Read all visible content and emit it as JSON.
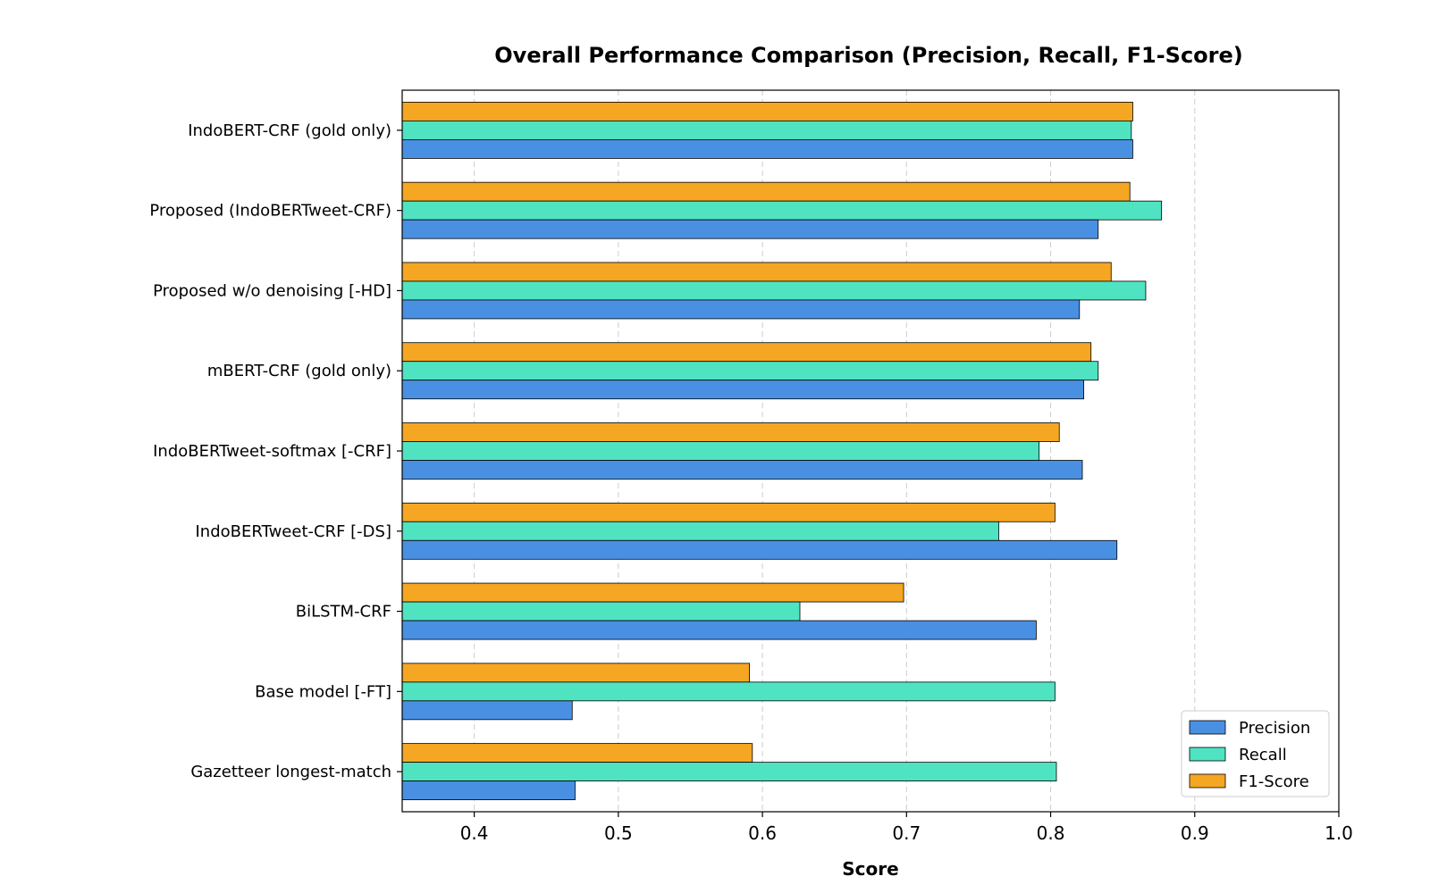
{
  "chart_data": {
    "type": "bar",
    "orientation": "horizontal",
    "title": "Overall Performance Comparison (Precision, Recall, F1-Score)",
    "xlabel": "Score",
    "ylabel": "",
    "xlim": [
      0.35,
      1.0
    ],
    "xticks": [
      "0.4",
      "0.5",
      "0.6",
      "0.7",
      "0.8",
      "0.9",
      "1.0"
    ],
    "grid": "x-dashed",
    "legend_position": "bottom-right",
    "categories": [
      "IndoBERT-CRF (gold only)",
      "Proposed (IndoBERTweet-CRF)",
      "Proposed w/o denoising [-HD]",
      "mBERT-CRF (gold only)",
      "IndoBERTweet-softmax [-CRF]",
      "IndoBERTweet-CRF [-DS]",
      "BiLSTM-CRF",
      "Base model [-FT]",
      "Gazetteer longest-match"
    ],
    "series": [
      {
        "name": "Precision",
        "color": "#4a90e2",
        "values": [
          0.857,
          0.833,
          0.82,
          0.823,
          0.822,
          0.846,
          0.79,
          0.468,
          0.47
        ]
      },
      {
        "name": "Recall",
        "color": "#50e3c2",
        "values": [
          0.856,
          0.877,
          0.866,
          0.833,
          0.792,
          0.764,
          0.626,
          0.803,
          0.804
        ]
      },
      {
        "name": "F1-Score",
        "color": "#f5a623",
        "values": [
          0.857,
          0.855,
          0.842,
          0.828,
          0.806,
          0.803,
          0.698,
          0.591,
          0.593
        ]
      }
    ]
  }
}
